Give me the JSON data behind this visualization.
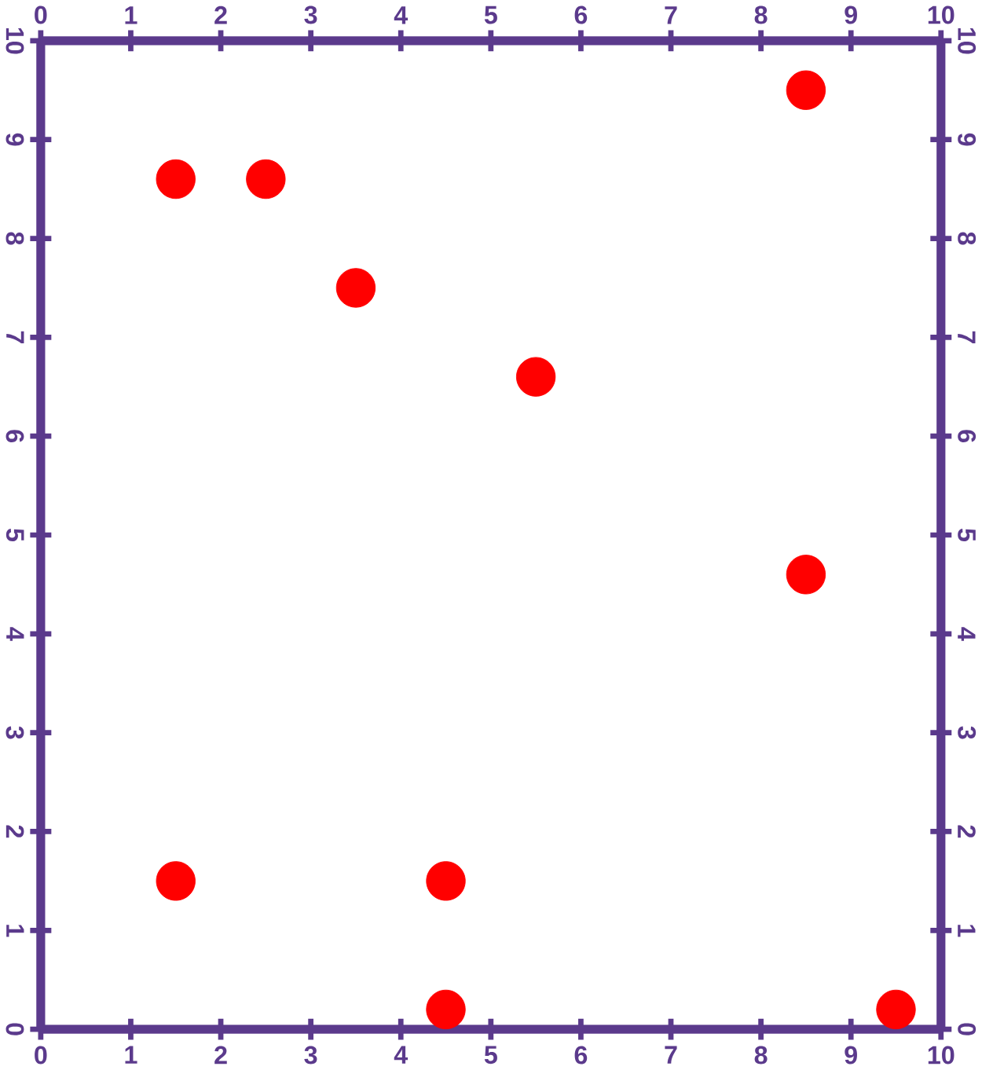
{
  "chart_data": {
    "type": "scatter",
    "marker": "circle",
    "color": "#ff0000",
    "x": [
      1.5,
      2.5,
      3.5,
      5.5,
      8.5,
      8.5,
      1.5,
      4.5,
      4.5,
      9.5
    ],
    "values": [
      8.6,
      8.6,
      7.5,
      6.6,
      9.5,
      4.6,
      1.5,
      1.5,
      0.2,
      0.2
    ],
    "xlim": [
      0,
      10
    ],
    "xticks": [
      0,
      1,
      2,
      3,
      4,
      5,
      6,
      7,
      8,
      9,
      10
    ],
    "ylim": [
      0,
      10
    ],
    "yticks": [
      0,
      1,
      2,
      3,
      4,
      5,
      6,
      7,
      8,
      9,
      10
    ],
    "x2lim": [
      0,
      10
    ],
    "x2ticks": [
      0,
      1,
      2,
      3,
      4,
      5,
      6,
      7,
      8,
      9,
      10
    ],
    "y2lim": [
      0,
      10
    ],
    "y2ticks": [
      0,
      1,
      2,
      3,
      4,
      5,
      6,
      7,
      8,
      9,
      10
    ]
  }
}
